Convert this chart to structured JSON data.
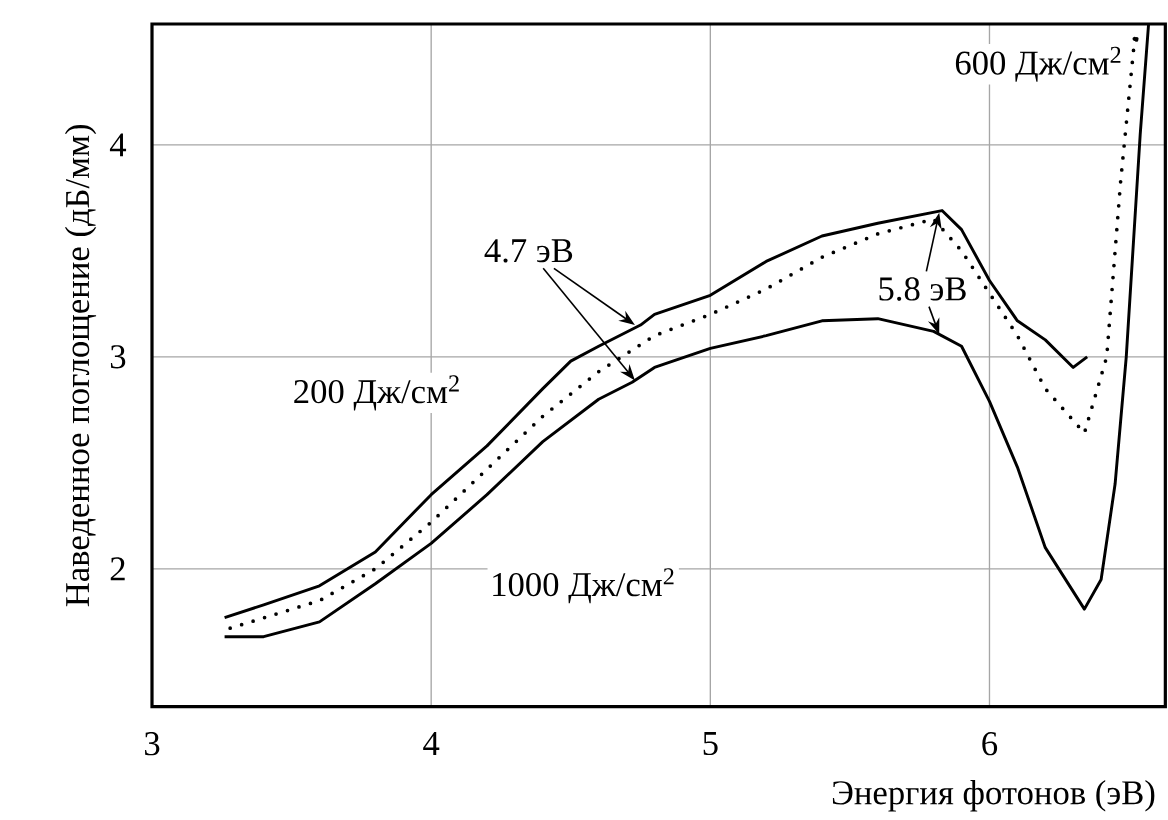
{
  "chart_data": {
    "type": "line",
    "xlabel": "Энергия фотонов (эВ)",
    "ylabel": "Наведенное поглощение (дБ/мм)",
    "xlim": [
      3,
      6.63
    ],
    "ylim": [
      1.35,
      4.57
    ],
    "xticks": [
      3,
      4,
      5,
      6
    ],
    "yticks": [
      2,
      3,
      4
    ],
    "grid": true,
    "series": [
      {
        "name": "200 Дж/см$^{2}$",
        "color": "#000000",
        "line_style": "solid",
        "x": [
          3.26,
          3.4,
          3.6,
          3.8,
          4.0,
          4.2,
          4.4,
          4.5,
          4.6,
          4.75,
          4.8,
          5.0,
          5.2,
          5.4,
          5.6,
          5.83,
          5.9,
          6.0,
          6.1,
          6.2,
          6.3,
          6.35
        ],
        "values": [
          1.77,
          1.83,
          1.92,
          2.08,
          2.35,
          2.58,
          2.85,
          2.98,
          3.05,
          3.15,
          3.2,
          3.29,
          3.45,
          3.57,
          3.63,
          3.69,
          3.6,
          3.36,
          3.17,
          3.08,
          2.95,
          3.0
        ]
      },
      {
        "name": "600 Дж/см$^{2}$",
        "color": "#000000",
        "line_style": "dotted",
        "x": [
          3.28,
          3.6,
          3.8,
          4.0,
          4.2,
          4.4,
          4.6,
          4.8,
          5.0,
          5.2,
          5.4,
          5.6,
          5.8,
          5.9,
          6.0,
          6.1,
          6.2,
          6.34,
          6.42,
          6.47,
          6.52
        ],
        "values": [
          1.72,
          1.85,
          2.0,
          2.22,
          2.47,
          2.72,
          2.93,
          3.1,
          3.2,
          3.32,
          3.47,
          3.58,
          3.65,
          3.5,
          3.3,
          3.1,
          2.85,
          2.64,
          3.0,
          3.83,
          4.5
        ]
      },
      {
        "name": "1000 Дж/см$^{2}$",
        "color": "#000000",
        "line_style": "solid",
        "x": [
          3.26,
          3.4,
          3.6,
          3.8,
          4.0,
          4.2,
          4.4,
          4.6,
          4.72,
          4.8,
          5.0,
          5.2,
          5.4,
          5.6,
          5.8,
          5.9,
          6.0,
          6.1,
          6.2,
          6.34,
          6.4,
          6.45,
          6.49,
          6.54,
          6.57
        ],
        "values": [
          1.68,
          1.68,
          1.75,
          1.93,
          2.12,
          2.35,
          2.6,
          2.8,
          2.88,
          2.95,
          3.04,
          3.1,
          3.17,
          3.18,
          3.12,
          3.05,
          2.79,
          2.48,
          2.1,
          1.81,
          1.95,
          2.4,
          3.0,
          4.05,
          4.57
        ]
      }
    ],
    "annotations": [
      {
        "text": "4.7 эВ",
        "x": 4.73,
        "y": 3.15
      },
      {
        "text": "5.8 эВ",
        "x": 5.82,
        "y": 3.68
      }
    ]
  }
}
